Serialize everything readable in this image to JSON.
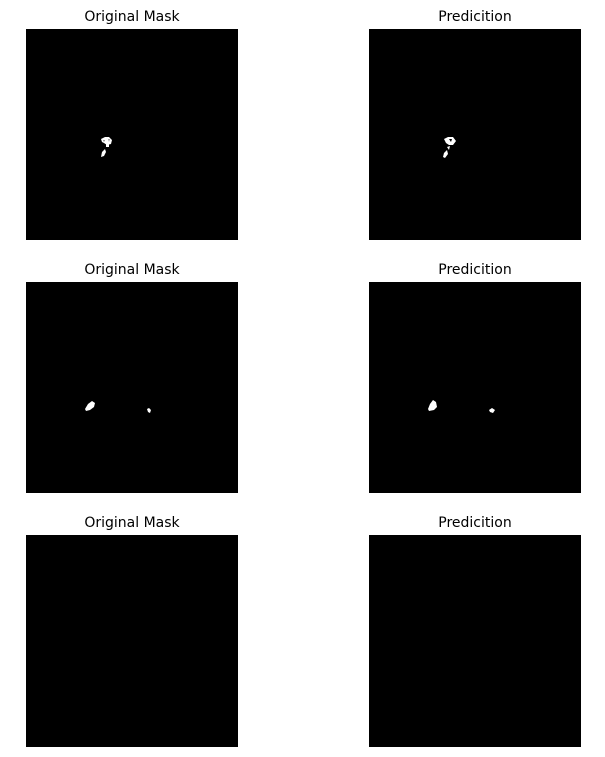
{
  "figure": {
    "rows": [
      {
        "original": {
          "title": "Original Mask"
        },
        "prediction": {
          "title": "Predicition"
        }
      },
      {
        "original": {
          "title": "Original Mask"
        },
        "prediction": {
          "title": "Predicition"
        }
      },
      {
        "original": {
          "title": "Original Mask"
        },
        "prediction": {
          "title": "Predicition"
        }
      }
    ],
    "colors": {
      "background": "#000000",
      "mask": "#ffffff"
    }
  }
}
